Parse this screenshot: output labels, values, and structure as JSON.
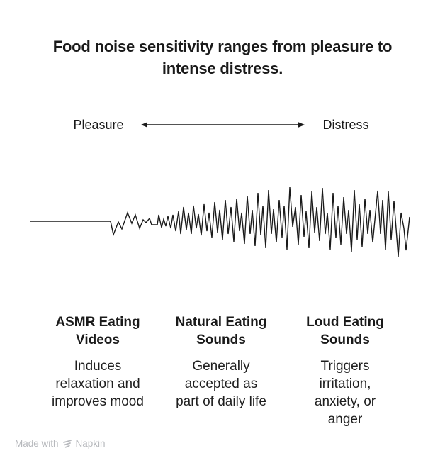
{
  "title": "Food noise sensitivity ranges from pleasure to\nintense distress.",
  "spectrum": {
    "left_label": "Pleasure",
    "right_label": "Distress"
  },
  "waveform": {
    "description": "audio-waveform-growing-amplitude-left-to-right",
    "points": [
      [
        2,
        54
      ],
      [
        116,
        54
      ],
      [
        120,
        73
      ],
      [
        127,
        55
      ],
      [
        132,
        65
      ],
      [
        140,
        42
      ],
      [
        146,
        57
      ],
      [
        151,
        45
      ],
      [
        157,
        64
      ],
      [
        162,
        52
      ],
      [
        166,
        56
      ],
      [
        171,
        50
      ],
      [
        174,
        59
      ],
      [
        182,
        59
      ],
      [
        184,
        45
      ],
      [
        188,
        63
      ],
      [
        191,
        51
      ],
      [
        194,
        61
      ],
      [
        197,
        47
      ],
      [
        201,
        64
      ],
      [
        204,
        45
      ],
      [
        208,
        68
      ],
      [
        212,
        40
      ],
      [
        215,
        72
      ],
      [
        219,
        34
      ],
      [
        223,
        66
      ],
      [
        226,
        42
      ],
      [
        230,
        72
      ],
      [
        233,
        32
      ],
      [
        237,
        64
      ],
      [
        240,
        44
      ],
      [
        244,
        74
      ],
      [
        248,
        30
      ],
      [
        252,
        68
      ],
      [
        255,
        42
      ],
      [
        259,
        77
      ],
      [
        263,
        27
      ],
      [
        267,
        70
      ],
      [
        270,
        38
      ],
      [
        274,
        80
      ],
      [
        278,
        24
      ],
      [
        282,
        72
      ],
      [
        286,
        34
      ],
      [
        290,
        83
      ],
      [
        294,
        22
      ],
      [
        298,
        68
      ],
      [
        301,
        42
      ],
      [
        305,
        86
      ],
      [
        309,
        18
      ],
      [
        313,
        72
      ],
      [
        316,
        38
      ],
      [
        320,
        89
      ],
      [
        324,
        14
      ],
      [
        328,
        74
      ],
      [
        331,
        32
      ],
      [
        335,
        92
      ],
      [
        339,
        10
      ],
      [
        343,
        72
      ],
      [
        346,
        37
      ],
      [
        350,
        84
      ],
      [
        354,
        24
      ],
      [
        358,
        77
      ],
      [
        361,
        32
      ],
      [
        365,
        94
      ],
      [
        369,
        6
      ],
      [
        373,
        62
      ],
      [
        377,
        34
      ],
      [
        381,
        87
      ],
      [
        385,
        17
      ],
      [
        389,
        76
      ],
      [
        392,
        40
      ],
      [
        396,
        92
      ],
      [
        400,
        12
      ],
      [
        404,
        70
      ],
      [
        407,
        34
      ],
      [
        411,
        82
      ],
      [
        415,
        7
      ],
      [
        419,
        72
      ],
      [
        422,
        42
      ],
      [
        426,
        94
      ],
      [
        430,
        14
      ],
      [
        434,
        78
      ],
      [
        437,
        32
      ],
      [
        441,
        87
      ],
      [
        445,
        20
      ],
      [
        449,
        72
      ],
      [
        452,
        38
      ],
      [
        456,
        97
      ],
      [
        460,
        10
      ],
      [
        464,
        80
      ],
      [
        467,
        30
      ],
      [
        471,
        90
      ],
      [
        475,
        22
      ],
      [
        479,
        72
      ],
      [
        482,
        38
      ],
      [
        486,
        84
      ],
      [
        490,
        42
      ],
      [
        493,
        11
      ],
      [
        497,
        72
      ],
      [
        500,
        24
      ],
      [
        504,
        94
      ],
      [
        508,
        12
      ],
      [
        512,
        80
      ],
      [
        516,
        25
      ],
      [
        522,
        104
      ],
      [
        526,
        42
      ],
      [
        530,
        64
      ],
      [
        533,
        95
      ],
      [
        538,
        48
      ]
    ]
  },
  "columns": [
    {
      "heading": "ASMR Eating\nVideos",
      "body": "Induces\nrelaxation and\nimproves mood"
    },
    {
      "heading": "Natural Eating\nSounds",
      "body": "Generally\naccepted as\npart of daily life"
    },
    {
      "heading": "Loud Eating\nSounds",
      "body": "Triggers\nirritation,\nanxiety, or\nanger"
    }
  ],
  "watermark": {
    "prefix": "Made with",
    "brand": "Napkin"
  },
  "colors": {
    "text": "#1a1a1a",
    "muted": "#b7b9bd",
    "background": "#ffffff"
  }
}
